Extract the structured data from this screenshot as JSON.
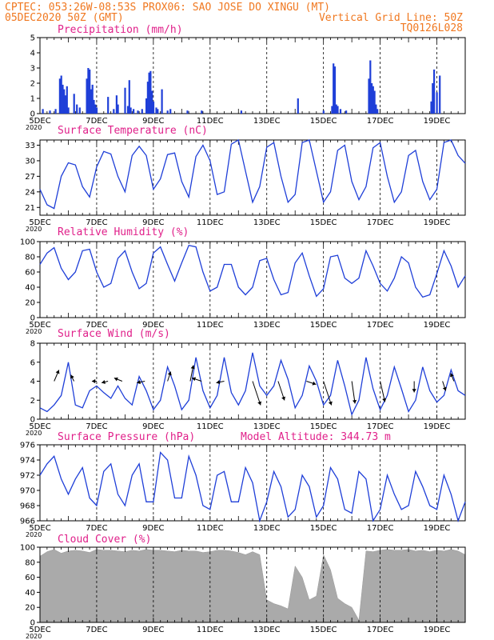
{
  "header": {
    "line1_left": "CPTEC:   053:26W-08:53S   PROX06: SAO JOSE DO XINGU (MT)",
    "line2_left": "05DEC2020 50Z (GMT)",
    "line2_right": "Vertical Grid Line: 50Z",
    "line3_right": "TQ0126L028"
  },
  "model_altitude": "Model Altitude: 344.73 m",
  "x_axis": {
    "day_labels": [
      "5DEC",
      "7DEC",
      "9DEC",
      "11DEC",
      "13DEC",
      "15DEC",
      "17DEC",
      "19DEC"
    ],
    "year_label": "2020",
    "days_span": 15
  },
  "colors": {
    "header": "#f07820",
    "title": "#e0208a",
    "line": "#1f3fd8",
    "bar": "#1f3fd8",
    "cloud": "#aaaaaa"
  },
  "chart_data": [
    {
      "id": "precip",
      "type": "bar",
      "title": "Precipitation (mm/h)",
      "ylim": [
        0,
        5
      ],
      "yticks": [
        0,
        1,
        2,
        3,
        4,
        5
      ],
      "x_unit": "days since 5DEC 00Z",
      "x": [
        0.1,
        0.35,
        0.55,
        0.7,
        0.75,
        0.8,
        0.85,
        0.9,
        0.95,
        1.0,
        1.2,
        1.3,
        1.4,
        1.65,
        1.7,
        1.75,
        1.8,
        1.85,
        1.9,
        1.95,
        2.0,
        2.4,
        2.6,
        2.7,
        2.75,
        3.0,
        3.1,
        3.15,
        3.2,
        3.3,
        3.45,
        3.6,
        3.75,
        3.8,
        3.85,
        3.9,
        3.95,
        4.0,
        4.1,
        4.15,
        4.3,
        4.5,
        4.6,
        5.2,
        5.7,
        7.1,
        9.1,
        10.0,
        10.3,
        10.35,
        10.4,
        10.45,
        10.5,
        10.6,
        10.8,
        11.6,
        11.65,
        11.7,
        11.75,
        11.8,
        11.85,
        11.9,
        13.8,
        13.85,
        13.9,
        14.0,
        14.1
      ],
      "values": [
        0.3,
        0.2,
        0.3,
        2.3,
        2.5,
        1.9,
        1.6,
        1.2,
        1.8,
        0.4,
        1.3,
        0.6,
        0.4,
        2.3,
        3.0,
        2.9,
        1.6,
        1.9,
        0.9,
        0.6,
        0.4,
        1.1,
        0.3,
        1.2,
        0.6,
        1.7,
        0.5,
        2.2,
        0.4,
        0.3,
        0.2,
        0.3,
        1.0,
        2.1,
        2.7,
        2.8,
        1.5,
        0.8,
        0.4,
        0.3,
        1.6,
        0.2,
        0.3,
        0.2,
        0.2,
        0.2,
        1.0,
        0.2,
        0.5,
        3.3,
        3.1,
        0.6,
        0.5,
        0.3,
        0.2,
        2.3,
        3.5,
        2.0,
        1.8,
        1.5,
        0.6,
        0.3,
        0.8,
        2.0,
        2.9,
        1.4,
        2.5
      ]
    },
    {
      "id": "temp",
      "type": "line",
      "title": "Surface Temperature (nC)",
      "ylim": [
        19.5,
        34
      ],
      "yticks": [
        21,
        24,
        27,
        30,
        33
      ],
      "x_unit": "days since 5DEC 00Z",
      "x": [
        0,
        0.25,
        0.5,
        0.75,
        1.0,
        1.25,
        1.5,
        1.75,
        2.0,
        2.25,
        2.5,
        2.75,
        3.0,
        3.25,
        3.5,
        3.75,
        4.0,
        4.25,
        4.5,
        4.75,
        5.0,
        5.25,
        5.5,
        5.75,
        6.0,
        6.25,
        6.5,
        6.75,
        7.0,
        7.25,
        7.5,
        7.75,
        8.0,
        8.25,
        8.5,
        8.75,
        9.0,
        9.25,
        9.5,
        9.75,
        10.0,
        10.25,
        10.5,
        10.75,
        11.0,
        11.25,
        11.5,
        11.75,
        12.0,
        12.25,
        12.5,
        12.75,
        13.0,
        13.25,
        13.5,
        13.75,
        14.0,
        14.25,
        14.5,
        14.75,
        15.0
      ],
      "values": [
        24.5,
        21.5,
        20.8,
        27,
        29.6,
        29.2,
        25,
        23,
        28.8,
        31.8,
        31.3,
        27,
        24,
        31,
        32.8,
        31,
        24.5,
        26.5,
        31.2,
        31.5,
        26,
        23,
        30.8,
        33,
        30,
        23.5,
        24,
        33.2,
        34,
        28,
        22,
        25,
        32.6,
        33.5,
        27,
        22,
        23.5,
        33.5,
        34,
        28,
        22,
        24,
        32,
        33,
        26,
        22.5,
        25,
        32.5,
        33.5,
        27,
        22,
        24,
        31,
        32,
        26,
        22.5,
        24.5,
        33.5,
        34,
        31,
        29.5
      ]
    },
    {
      "id": "rh",
      "type": "line",
      "title": "Relative Humidity (%)",
      "ylim": [
        0,
        100
      ],
      "yticks": [
        0,
        20,
        40,
        60,
        80,
        100
      ],
      "x_unit": "days since 5DEC 00Z",
      "x": [
        0,
        0.25,
        0.5,
        0.75,
        1.0,
        1.25,
        1.5,
        1.75,
        2.0,
        2.25,
        2.5,
        2.75,
        3.0,
        3.25,
        3.5,
        3.75,
        4.0,
        4.25,
        4.5,
        4.75,
        5.0,
        5.25,
        5.5,
        5.75,
        6.0,
        6.25,
        6.5,
        6.75,
        7.0,
        7.25,
        7.5,
        7.75,
        8.0,
        8.25,
        8.5,
        8.75,
        9.0,
        9.25,
        9.5,
        9.75,
        10.0,
        10.25,
        10.5,
        10.75,
        11.0,
        11.25,
        11.5,
        11.75,
        12.0,
        12.25,
        12.5,
        12.75,
        13.0,
        13.25,
        13.5,
        13.75,
        14.0,
        14.25,
        14.5,
        14.75,
        15.0
      ],
      "values": [
        70,
        85,
        92,
        65,
        50,
        60,
        88,
        90,
        60,
        40,
        45,
        78,
        88,
        60,
        38,
        45,
        85,
        93,
        70,
        48,
        72,
        95,
        93,
        60,
        35,
        40,
        70,
        70,
        40,
        30,
        40,
        75,
        78,
        50,
        30,
        33,
        72,
        85,
        55,
        28,
        38,
        80,
        82,
        52,
        45,
        52,
        88,
        68,
        45,
        35,
        52,
        80,
        72,
        40,
        27,
        30,
        58,
        88,
        68,
        40,
        55
      ]
    },
    {
      "id": "wind",
      "type": "line",
      "title": "Surface Wind (m/s)",
      "ylim": [
        0,
        8
      ],
      "yticks": [
        0,
        2,
        4,
        6,
        8
      ],
      "x_unit": "days since 5DEC 00Z",
      "x": [
        0,
        0.25,
        0.5,
        0.75,
        1.0,
        1.25,
        1.5,
        1.75,
        2.0,
        2.25,
        2.5,
        2.75,
        3.0,
        3.25,
        3.5,
        3.75,
        4.0,
        4.25,
        4.5,
        4.75,
        5.0,
        5.25,
        5.5,
        5.75,
        6.0,
        6.25,
        6.5,
        6.75,
        7.0,
        7.25,
        7.5,
        7.75,
        8.0,
        8.25,
        8.5,
        8.75,
        9.0,
        9.25,
        9.5,
        9.75,
        10.0,
        10.25,
        10.5,
        10.75,
        11.0,
        11.25,
        11.5,
        11.75,
        12.0,
        12.25,
        12.5,
        12.75,
        13.0,
        13.25,
        13.5,
        13.75,
        14.0,
        14.25,
        14.5,
        14.75,
        15.0
      ],
      "values": [
        1.2,
        0.8,
        1.5,
        2.5,
        6.0,
        1.5,
        1.2,
        3.0,
        3.5,
        2.8,
        2.2,
        3.5,
        2.2,
        1.5,
        4.5,
        3.0,
        1.0,
        2.0,
        5.5,
        3.5,
        1.0,
        2.0,
        6.5,
        3.0,
        1.2,
        2.5,
        6.5,
        2.8,
        1.5,
        3.0,
        7.0,
        3.5,
        2.5,
        3.5,
        6.2,
        4.2,
        1.2,
        2.5,
        5.6,
        4.0,
        1.5,
        2.5,
        6.2,
        3.5,
        0.5,
        2.0,
        6.5,
        3.2,
        1.0,
        2.5,
        5.5,
        3.2,
        0.8,
        2.0,
        5.5,
        3.0,
        1.8,
        2.5,
        5.2,
        3.0,
        2.5
      ]
    },
    {
      "id": "pressure",
      "type": "line",
      "title": "Surface Pressure (hPa)",
      "ylim": [
        966,
        976
      ],
      "yticks": [
        966,
        968,
        970,
        972,
        974,
        976
      ],
      "x_unit": "days since 5DEC 00Z",
      "x": [
        0,
        0.25,
        0.5,
        0.75,
        1.0,
        1.25,
        1.5,
        1.75,
        2.0,
        2.25,
        2.5,
        2.75,
        3.0,
        3.25,
        3.5,
        3.75,
        4.0,
        4.25,
        4.5,
        4.75,
        5.0,
        5.25,
        5.5,
        5.75,
        6.0,
        6.25,
        6.5,
        6.75,
        7.0,
        7.25,
        7.5,
        7.75,
        8.0,
        8.25,
        8.5,
        8.75,
        9.0,
        9.25,
        9.5,
        9.75,
        10.0,
        10.25,
        10.5,
        10.75,
        11.0,
        11.25,
        11.5,
        11.75,
        12.0,
        12.25,
        12.5,
        12.75,
        13.0,
        13.25,
        13.5,
        13.75,
        14.0,
        14.25,
        14.5,
        14.75,
        15.0
      ],
      "values": [
        972.0,
        973.5,
        974.5,
        971.5,
        969.5,
        971.5,
        973.0,
        969.0,
        968.0,
        972.5,
        973.5,
        969.5,
        968.0,
        972.0,
        973.5,
        968.5,
        968.5,
        975.0,
        974.0,
        969.0,
        969.0,
        974.5,
        972.0,
        968.0,
        967.5,
        972.0,
        972.5,
        968.5,
        968.5,
        973.0,
        971.0,
        966.0,
        968.5,
        972.5,
        970.5,
        966.5,
        967.5,
        972.0,
        970.5,
        966.5,
        968.0,
        973.0,
        971.5,
        967.5,
        967.0,
        972.5,
        971.5,
        966.0,
        967.5,
        972.0,
        969.5,
        967.5,
        968.0,
        972.5,
        970.5,
        968.0,
        967.5,
        972.0,
        969.5,
        966.0,
        968.5
      ]
    },
    {
      "id": "cloud",
      "type": "area",
      "title": "Cloud Cover (%)",
      "ylim": [
        0,
        100
      ],
      "yticks": [
        0,
        20,
        40,
        60,
        80,
        100
      ],
      "x_unit": "days since 5DEC 00Z",
      "x": [
        0,
        0.25,
        0.5,
        0.75,
        1.0,
        1.25,
        1.5,
        1.75,
        2.0,
        2.25,
        2.5,
        2.75,
        3.0,
        3.25,
        3.5,
        3.75,
        4.0,
        4.25,
        4.5,
        4.75,
        5.0,
        5.25,
        5.5,
        5.75,
        6.0,
        6.25,
        6.5,
        6.75,
        7.0,
        7.25,
        7.5,
        7.75,
        8.0,
        8.25,
        8.5,
        8.75,
        9.0,
        9.25,
        9.5,
        9.75,
        10.0,
        10.25,
        10.5,
        10.75,
        11.0,
        11.25,
        11.5,
        11.75,
        12.0,
        12.25,
        12.5,
        12.75,
        13.0,
        13.25,
        13.5,
        13.75,
        14.0,
        14.25,
        14.5,
        14.75,
        15.0
      ],
      "values": [
        88,
        94,
        97,
        92,
        95,
        96,
        95,
        93,
        97,
        96,
        96,
        95,
        94,
        96,
        95,
        97,
        96,
        96,
        95,
        94,
        96,
        95,
        95,
        93,
        94,
        96,
        96,
        95,
        93,
        90,
        94,
        90,
        30,
        25,
        22,
        18,
        75,
        60,
        30,
        35,
        90,
        70,
        32,
        25,
        20,
        3,
        95,
        94,
        96,
        97,
        96,
        96,
        97,
        95,
        96,
        94,
        96,
        95,
        97,
        95,
        90
      ]
    }
  ],
  "wind_vectors": [
    {
      "day": 0.5,
      "speed": 4.0,
      "dx": 0.3,
      "dy": 0.7
    },
    {
      "day": 1.2,
      "speed": 4.0,
      "dx": -0.2,
      "dy": 0.4
    },
    {
      "day": 2.0,
      "speed": 4.0,
      "dx": -0.3,
      "dy": 0.0
    },
    {
      "day": 2.4,
      "speed": 4.0,
      "dx": -0.4,
      "dy": -0.1
    },
    {
      "day": 2.9,
      "speed": 4.0,
      "dx": -0.5,
      "dy": 0.2
    },
    {
      "day": 3.7,
      "speed": 4.0,
      "dx": -0.5,
      "dy": -0.1
    },
    {
      "day": 4.5,
      "speed": 4.0,
      "dx": 0.2,
      "dy": 0.6
    },
    {
      "day": 5.3,
      "speed": 4.0,
      "dx": 0.2,
      "dy": 1.0
    },
    {
      "day": 5.7,
      "speed": 4.0,
      "dx": -0.6,
      "dy": 0.2
    },
    {
      "day": 6.5,
      "speed": 4.0,
      "dx": -0.5,
      "dy": -0.1
    },
    {
      "day": 7.5,
      "speed": 4.0,
      "dx": 0.5,
      "dy": -1.5
    },
    {
      "day": 8.4,
      "speed": 4.0,
      "dx": 0.4,
      "dy": -1.2
    },
    {
      "day": 9.4,
      "speed": 4.0,
      "dx": 0.6,
      "dy": -0.2
    },
    {
      "day": 10.0,
      "speed": 4.0,
      "dx": 0.5,
      "dy": -1.5
    },
    {
      "day": 11.0,
      "speed": 4.0,
      "dx": 0.2,
      "dy": -1.4
    },
    {
      "day": 12.0,
      "speed": 4.0,
      "dx": 0.3,
      "dy": -1.3
    },
    {
      "day": 13.2,
      "speed": 4.0,
      "dx": 0.0,
      "dy": -0.7
    },
    {
      "day": 14.2,
      "speed": 4.0,
      "dx": 0.2,
      "dy": -0.6
    },
    {
      "day": 14.6,
      "speed": 4.0,
      "dx": -0.2,
      "dy": 0.5
    }
  ]
}
